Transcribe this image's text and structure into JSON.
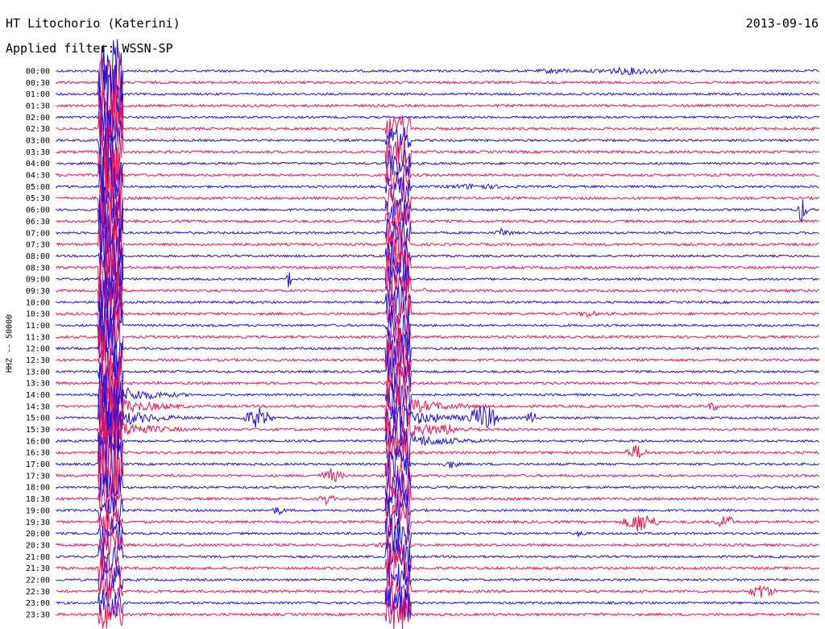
{
  "header": {
    "title": "HT Litochorio (Katerini)",
    "date": "2013-09-16",
    "filter": "Applied filter: WSSN-SP"
  },
  "chart_data": {
    "type": "line",
    "title": "HT Litochorio (Katerini)",
    "subtitle": "Applied filter: WSSN-SP",
    "ylabel": "HHZ -- 50000",
    "xlabel": "",
    "y_ticks": [
      "00:00",
      "00:30",
      "01:00",
      "01:30",
      "02:00",
      "02:30",
      "03:00",
      "03:30",
      "04:00",
      "04:30",
      "05:00",
      "05:30",
      "06:00",
      "06:30",
      "07:00",
      "07:30",
      "08:00",
      "08:30",
      "09:00",
      "09:30",
      "10:00",
      "10:30",
      "11:00",
      "11:30",
      "12:00",
      "12:30",
      "13:00",
      "13:30",
      "14:00",
      "14:30",
      "15:00",
      "15:30",
      "16:00",
      "16:30",
      "17:00",
      "17:30",
      "18:00",
      "18:30",
      "19:00",
      "19:30",
      "20:00",
      "20:30",
      "21:00",
      "21:30",
      "22:00",
      "22:30",
      "23:00",
      "23:30"
    ],
    "trace_colors": [
      "#1a10e8",
      "#ee1450"
    ],
    "grid": false,
    "legend": "none"
  }
}
